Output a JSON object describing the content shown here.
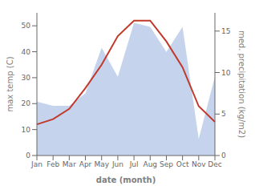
{
  "chart_data": {
    "type": "line",
    "xlabel": "date (month)",
    "ylabel": "max temp (C)",
    "y2label": "med. precipitation (kg/m2)",
    "categories": [
      "Jan",
      "Feb",
      "Mar",
      "Apr",
      "May",
      "Jun",
      "Jul",
      "Aug",
      "Sep",
      "Oct",
      "Nov",
      "Dec"
    ],
    "series": [
      {
        "type": "area",
        "axis": "y2",
        "color": "#c5d4ec",
        "values": [
          6.5,
          6.0,
          6.0,
          7.5,
          13.0,
          9.5,
          16.0,
          15.5,
          12.5,
          15.5,
          2.0,
          9.5
        ]
      },
      {
        "type": "line",
        "color": "#c0392b",
        "values": [
          12,
          14,
          18,
          26,
          35,
          46,
          52,
          52,
          44,
          34,
          19,
          13
        ]
      }
    ],
    "ylim": [
      0,
      55
    ],
    "yticks": [
      0,
      10,
      20,
      30,
      40,
      50
    ],
    "y2lim": [
      0,
      17.2
    ],
    "y2ticks": [
      0,
      5,
      10,
      15
    ]
  }
}
